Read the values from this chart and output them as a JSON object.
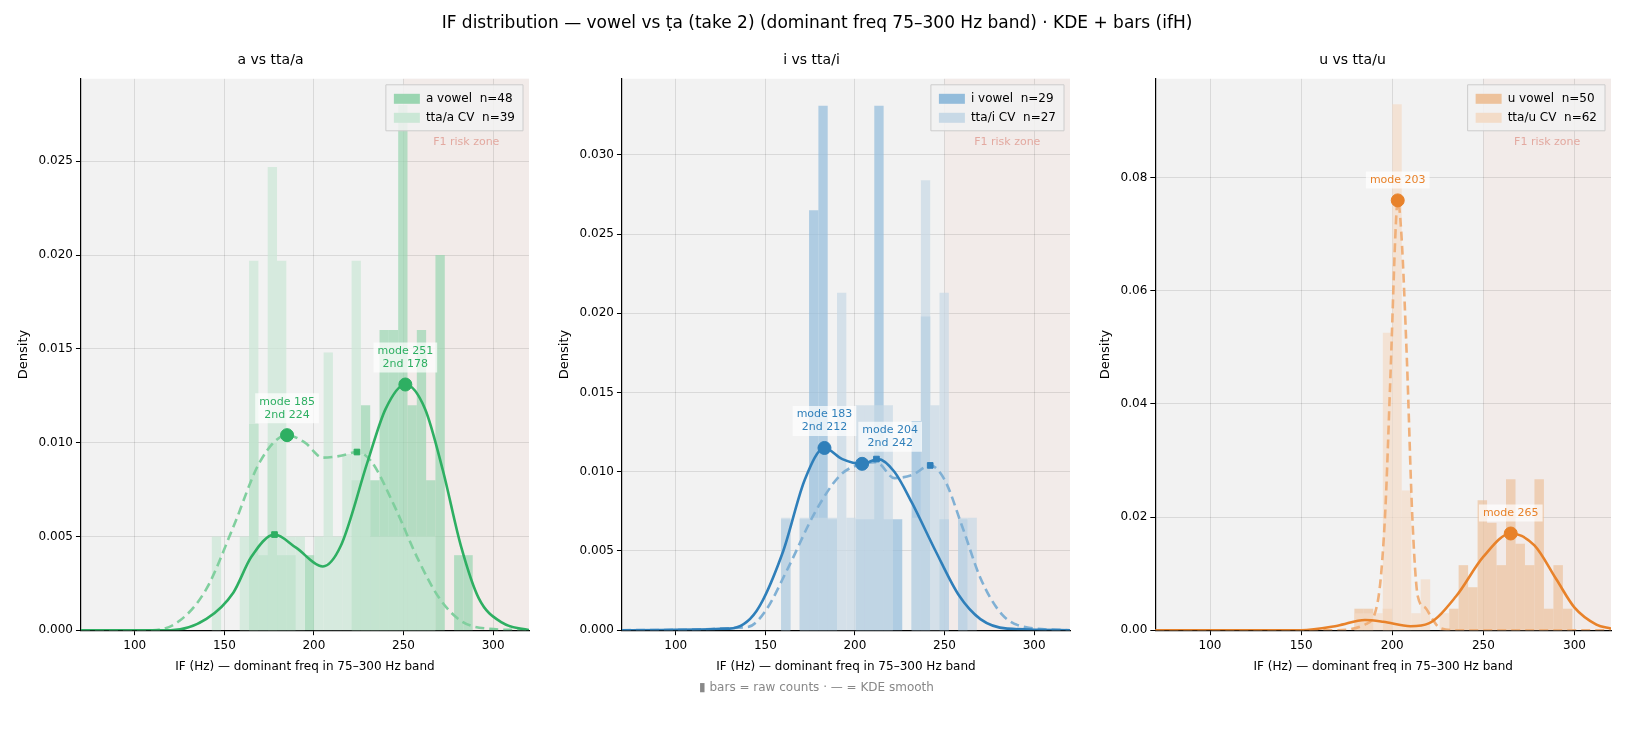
{
  "chart_data": [
    {
      "type": "histogram",
      "title": "a vs tta/a",
      "xlabel": "IF (Hz) — dominant freq in 75–300 Hz band",
      "ylabel": "Density",
      "xlim": [
        70,
        320
      ],
      "ylim": [
        0,
        0.0294
      ],
      "xticks": [
        100,
        150,
        200,
        250,
        300
      ],
      "yticks": [
        {
          "value": 0,
          "label": "0.000"
        },
        {
          "value": 0.005,
          "label": "0.005"
        },
        {
          "value": 0.01,
          "label": "0.010"
        },
        {
          "value": 0.015,
          "label": "0.015"
        },
        {
          "value": 0.02,
          "label": "0.020"
        },
        {
          "value": 0.025,
          "label": "0.025"
        }
      ],
      "grid": true,
      "legend": "top right",
      "bands": [
        {
          "axis": "x",
          "from": 250,
          "to": 320,
          "label": "F1 risk zone",
          "color": "#f2ebe9"
        }
      ],
      "annotations": [
        "IF distribution — vowel vs ṭa (take 2) (dominant freq 75–300 Hz band) · KDE + bars (ifH)",
        {
          "text": "mode 185\n2nd 224",
          "x": 185,
          "y": 0.0104
        },
        {
          "text": "mode 251\n2nd 178",
          "x": 251,
          "y": 0.0131
        }
      ],
      "series": [
        {
          "type": "histogram",
          "name": "a vowel  n=48",
          "color": "#9ad5b1",
          "bins": [
            143,
            148.2,
            153.4,
            158.6,
            163.8,
            169,
            174.2,
            179.4,
            184.6,
            189.8,
            195,
            200.2,
            205.4,
            210.6,
            215.8,
            221,
            226.2,
            231.4,
            236.6,
            241.8,
            247,
            252.2,
            257.4,
            262.6,
            267.8,
            273,
            278.2,
            283.4,
            288.6
          ],
          "values": [
            0,
            0,
            0,
            0,
            0.011,
            0.004,
            0.01,
            0.004,
            0.004,
            0,
            0.004,
            0,
            0,
            0,
            0,
            0.008,
            0.012,
            0.008,
            0.016,
            0.016,
            0.028,
            0.012,
            0.016,
            0.008,
            0.02,
            0,
            0.004,
            0.004
          ]
        },
        {
          "type": "histogram",
          "name": "tta/a CV  n=39",
          "color": "#cbe7d6",
          "bins": [
            143,
            148.2,
            153.4,
            158.6,
            163.8,
            169,
            174.2,
            179.4,
            184.6,
            189.8,
            195,
            200.2,
            205.4,
            210.6,
            215.8,
            221,
            226.2,
            231.4,
            236.6,
            241.8,
            247,
            252.2,
            257.4,
            262.6,
            267.8,
            273,
            278.2,
            283.4,
            288.6
          ],
          "values": [
            0.005,
            0,
            0,
            0.005,
            0.0197,
            0.005,
            0.0247,
            0.0197,
            0.005,
            0.005,
            0,
            0.005,
            0.0148,
            0.005,
            0.0094,
            0.0197,
            0.0094,
            0.005,
            0.005,
            0.005,
            0.005,
            0.005,
            0.005,
            0.005,
            0,
            0,
            0,
            0
          ]
        },
        {
          "type": "line",
          "color": "#2eaf62",
          "line_style": "solid",
          "x": [
            70,
            120,
            140,
            155,
            165,
            178,
            190,
            205,
            215,
            230,
            240,
            251,
            262,
            272,
            282,
            292,
            305,
            320
          ],
          "values": [
            0,
            0,
            0.0006,
            0.002,
            0.0039,
            0.0051,
            0.0044,
            0.0034,
            0.0045,
            0.009,
            0.0118,
            0.0131,
            0.0118,
            0.0085,
            0.0045,
            0.0017,
            0.0004,
            0
          ]
        },
        {
          "type": "line",
          "color": "#80cf9e",
          "line_style": "dashed",
          "x": [
            70,
            110,
            125,
            140,
            155,
            170,
            185,
            195,
            205,
            215,
            224,
            232,
            245,
            258,
            270,
            282,
            295,
            320
          ],
          "values": [
            0,
            0,
            0.0005,
            0.0022,
            0.0055,
            0.009,
            0.0104,
            0.01,
            0.0092,
            0.0093,
            0.0095,
            0.009,
            0.0066,
            0.0038,
            0.0017,
            0.0005,
            0.0001,
            0
          ]
        },
        {
          "type": "scatter",
          "color": "#2eaf62",
          "marker": "circle",
          "x": [
            185,
            251
          ],
          "values": [
            0.0104,
            0.0131
          ]
        },
        {
          "type": "scatter",
          "color": "#2eaf62",
          "marker": "square",
          "x": [
            178,
            224
          ],
          "values": [
            0.0051,
            0.0095
          ]
        }
      ]
    },
    {
      "type": "histogram",
      "title": "i vs tta/i",
      "xlabel": "IF (Hz) — dominant freq in 75–300 Hz band",
      "ylabel": "Density",
      "xlim": [
        70,
        320
      ],
      "ylim": [
        0,
        0.0348
      ],
      "xticks": [
        100,
        150,
        200,
        250,
        300
      ],
      "yticks": [
        {
          "value": 0,
          "label": "0.000"
        },
        {
          "value": 0.005,
          "label": "0.005"
        },
        {
          "value": 0.01,
          "label": "0.010"
        },
        {
          "value": 0.015,
          "label": "0.015"
        },
        {
          "value": 0.02,
          "label": "0.020"
        },
        {
          "value": 0.025,
          "label": "0.025"
        },
        {
          "value": 0.03,
          "label": "0.030"
        }
      ],
      "grid": true,
      "legend": "top right",
      "bands": [
        {
          "axis": "x",
          "from": 250,
          "to": 320,
          "label": "F1 risk zone",
          "color": "#f2ebe9"
        }
      ],
      "annotations": [
        "▮ bars = raw counts  ·  — = KDE smooth",
        {
          "text": "mode 183\n2nd 212",
          "x": 183,
          "y": 0.0115
        },
        {
          "text": "mode 204\n2nd 242",
          "x": 204,
          "y": 0.0105
        }
      ],
      "series": [
        {
          "type": "histogram",
          "name": "i vowel  n=29",
          "color": "#93bcdb",
          "bins": [
            158.8,
            164,
            169.2,
            174.4,
            179.6,
            184.8,
            190,
            195.2,
            200.4,
            205.6,
            210.8,
            216,
            221.2,
            226.4,
            231.6,
            236.8,
            242,
            247.2,
            252.4,
            257.6,
            262.8,
            268
          ],
          "values": [
            0.007,
            0,
            0.007,
            0.0265,
            0.0331,
            0.007,
            0,
            0,
            0.007,
            0.007,
            0.0331,
            0.007,
            0.007,
            0,
            0.0132,
            0.0198,
            0,
            0.007,
            0,
            0.007,
            0
          ]
        },
        {
          "type": "histogram",
          "name": "tta/i CV  n=27",
          "color": "#c8d9e6",
          "bins": [
            158.8,
            164,
            169.2,
            174.4,
            179.6,
            184.8,
            190,
            195.2,
            200.4,
            205.6,
            210.8,
            216,
            221.2,
            226.4,
            231.6,
            236.8,
            242,
            247.2,
            252.4,
            257.6,
            262.8,
            268
          ],
          "values": [
            0.0071,
            0,
            0.0071,
            0.0071,
            0.0071,
            0.0071,
            0.0213,
            0.0071,
            0.0142,
            0.0142,
            0.0142,
            0.0142,
            0,
            0,
            0.0071,
            0.0284,
            0.0142,
            0.0213,
            0,
            0.0071,
            0.0071
          ]
        },
        {
          "type": "line",
          "color": "#2f7fba",
          "line_style": "solid",
          "x": [
            70,
            130,
            145,
            160,
            172,
            183,
            193,
            204,
            213,
            222,
            232,
            245,
            258,
            270,
            285,
            320
          ],
          "values": [
            0,
            0.0001,
            0.0012,
            0.005,
            0.0095,
            0.0115,
            0.0108,
            0.0105,
            0.0108,
            0.01,
            0.008,
            0.005,
            0.0022,
            0.0007,
            0.0001,
            0
          ]
        },
        {
          "type": "line",
          "color": "#80b0d4",
          "line_style": "dashed",
          "x": [
            70,
            140,
            150,
            163,
            178,
            192,
            204,
            212,
            222,
            232,
            242,
            250,
            260,
            270,
            282,
            295,
            320
          ],
          "values": [
            0,
            0.0002,
            0.0012,
            0.004,
            0.0075,
            0.0098,
            0.0105,
            0.0106,
            0.0096,
            0.0098,
            0.0104,
            0.0095,
            0.0065,
            0.0033,
            0.001,
            0.0002,
            0
          ]
        },
        {
          "type": "scatter",
          "color": "#2f7fba",
          "marker": "circle",
          "x": [
            183,
            204
          ],
          "values": [
            0.0115,
            0.0105
          ]
        },
        {
          "type": "scatter",
          "color": "#2f7fba",
          "marker": "square",
          "x": [
            212,
            242
          ],
          "values": [
            0.0108,
            0.0104
          ]
        }
      ]
    },
    {
      "type": "histogram",
      "title": "u vs tta/u",
      "xlabel": "IF (Hz) — dominant freq in 75–300 Hz band",
      "ylabel": "Density",
      "xlim": [
        70,
        320
      ],
      "ylim": [
        0,
        0.0975
      ],
      "xticks": [
        100,
        150,
        200,
        250,
        300
      ],
      "yticks": [
        {
          "value": 0,
          "label": "0.00"
        },
        {
          "value": 0.02,
          "label": "0.02"
        },
        {
          "value": 0.04,
          "label": "0.04"
        },
        {
          "value": 0.06,
          "label": "0.06"
        },
        {
          "value": 0.08,
          "label": "0.08"
        }
      ],
      "grid": true,
      "legend": "top right",
      "bands": [
        {
          "axis": "x",
          "from": 250,
          "to": 320,
          "label": "F1 risk zone",
          "color": "#f2ebe9"
        }
      ],
      "annotations": [
        {
          "text": "mode 203",
          "x": 203,
          "y": 0.076
        },
        {
          "text": "mode 265",
          "x": 265,
          "y": 0.0171
        }
      ],
      "series": [
        {
          "type": "histogram",
          "name": "u vowel  n=50",
          "color": "#edc29c",
          "bins": [
            179.2,
            184.4,
            189.6,
            194.8,
            200,
            205.2,
            210.4,
            215.6,
            220.8,
            226,
            231.2,
            236.4,
            241.6,
            246.8,
            252,
            257.2,
            262.4,
            267.6,
            272.8,
            278,
            283.2,
            288.4,
            293.6,
            298.8
          ],
          "values": [
            0.0038,
            0.0038,
            0,
            0.0038,
            0,
            0,
            0,
            0,
            0,
            0,
            0.0038,
            0.0115,
            0.0076,
            0.023,
            0.019,
            0.0115,
            0.0267,
            0.0153,
            0.0115,
            0.0267,
            0.0038,
            0.0115,
            0.0038
          ]
        },
        {
          "type": "histogram",
          "name": "tta/u CV  n=62",
          "color": "#f3dcc8",
          "bins": [
            179.2,
            184.4,
            189.6,
            194.8,
            200,
            205.2,
            210.4,
            215.6,
            220.8,
            226,
            231.2
          ],
          "values": [
            0.003,
            0.003,
            0.003,
            0.0526,
            0.093,
            0.0247,
            0.003,
            0.009,
            0,
            0.003
          ]
        },
        {
          "type": "line",
          "color": "#e8822a",
          "line_style": "solid",
          "x": [
            70,
            150,
            170,
            185,
            195,
            210,
            220,
            235,
            250,
            265,
            278,
            290,
            300,
            312,
            320
          ],
          "values": [
            0,
            0,
            0.0008,
            0.0018,
            0.0015,
            0.0007,
            0.0012,
            0.006,
            0.013,
            0.0171,
            0.015,
            0.009,
            0.004,
            0.001,
            0.0003
          ]
        },
        {
          "type": "line",
          "color": "#f0b07a",
          "line_style": "dashed",
          "x": [
            70,
            170,
            185,
            192,
            196,
            199,
            202,
            203,
            205,
            208,
            211,
            214,
            218,
            222,
            226,
            235,
            320
          ],
          "values": [
            0,
            0,
            0.001,
            0.005,
            0.02,
            0.045,
            0.072,
            0.076,
            0.07,
            0.048,
            0.02,
            0.006,
            0.004,
            0.002,
            0.0004,
            0,
            0
          ]
        },
        {
          "type": "scatter",
          "color": "#e8822a",
          "marker": "circle",
          "x": [
            203,
            265
          ],
          "values": [
            0.076,
            0.0171
          ]
        }
      ]
    }
  ]
}
